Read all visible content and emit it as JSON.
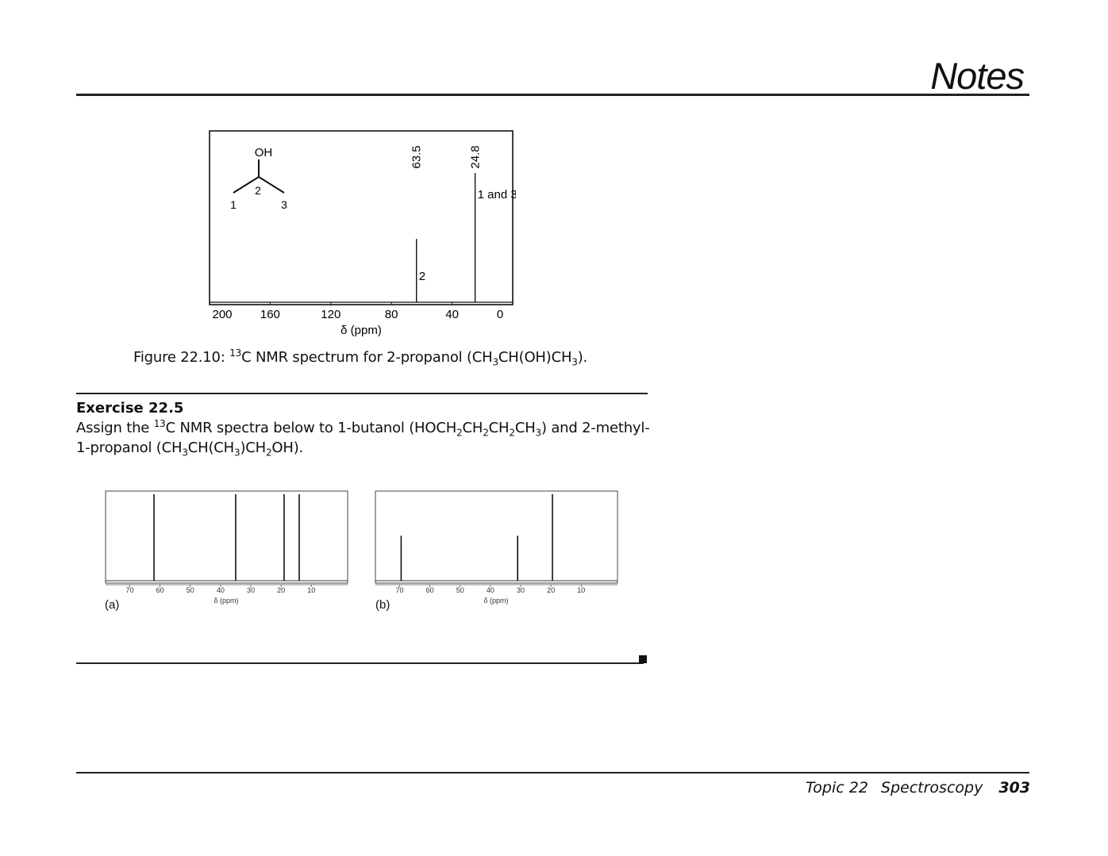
{
  "header": {
    "title": "Notes"
  },
  "figure": {
    "caption_prefix": "Figure 22.10: ",
    "caption_sup": "13",
    "caption_text": "C NMR spectrum for 2-propanol (CH",
    "caption_sub1": "3",
    "caption_mid": "CH(OH)CH",
    "caption_sub2": "3",
    "caption_end": ").",
    "molecule": {
      "oh": "OH",
      "c1": "1",
      "c2": "2",
      "c3": "3"
    }
  },
  "exercise": {
    "title": "Exercise 22.5",
    "t1": "Assign the ",
    "t1_sup": "13",
    "t2": "C NMR spectra below to 1-butanol (HOCH",
    "s1": "2",
    "t3": "CH",
    "s2": "2",
    "t4": "CH",
    "s3": "2",
    "t5": "CH",
    "s4": "3",
    "t6": ") and 2-methyl-1-propanol (CH",
    "s5": "3",
    "t7": "CH(CH",
    "s6": "3",
    "t8": ")CH",
    "s7": "2",
    "t9": "OH)."
  },
  "footer": {
    "topic": "Topic 22",
    "section": "Spectroscopy",
    "page": "303"
  },
  "chart_data": [
    {
      "type": "line",
      "title": "",
      "xlabel": "δ (ppm)",
      "ylabel": "",
      "xlim": [
        200,
        0
      ],
      "x_ticks": [
        "200",
        "160",
        "120",
        "80",
        "40",
        "0"
      ],
      "peaks": [
        {
          "x": 63.5,
          "height": 0.49,
          "label": "63.5",
          "assignment": "2"
        },
        {
          "x": 24.8,
          "height": 1.0,
          "label": "24.8",
          "assignment": "1 and 3"
        }
      ]
    },
    {
      "type": "line",
      "title": "",
      "panel_label": "(a)",
      "xlabel": "δ (ppm)",
      "xlim": [
        78,
        -2
      ],
      "x_ticks": [
        "70",
        "60",
        "50",
        "40",
        "30",
        "20",
        "10"
      ],
      "peaks": [
        {
          "x": 62,
          "height": 1.0
        },
        {
          "x": 35,
          "height": 1.0
        },
        {
          "x": 19,
          "height": 1.0
        },
        {
          "x": 14,
          "height": 1.0
        }
      ]
    },
    {
      "type": "line",
      "title": "",
      "panel_label": "(b)",
      "xlabel": "δ (ppm)",
      "xlim": [
        78,
        -2
      ],
      "x_ticks": [
        "70",
        "60",
        "50",
        "40",
        "30",
        "20",
        "10"
      ],
      "peaks": [
        {
          "x": 69.5,
          "height": 0.52
        },
        {
          "x": 31,
          "height": 0.52
        },
        {
          "x": 19.5,
          "height": 1.0
        }
      ]
    }
  ]
}
